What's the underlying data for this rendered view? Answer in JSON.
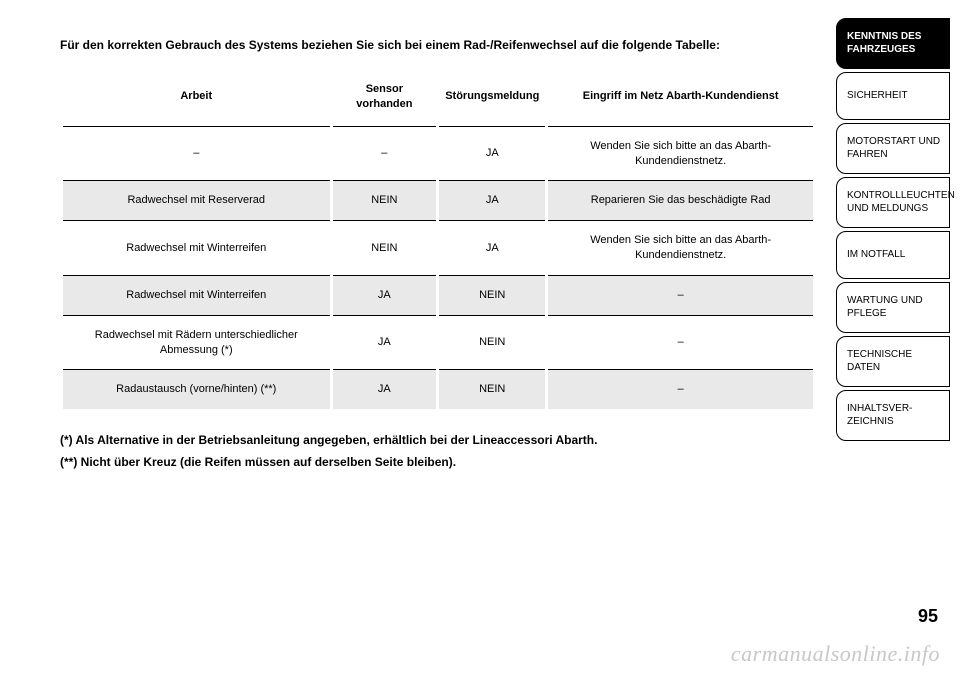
{
  "intro": "Für den korrekten Gebrauch des Systems beziehen Sie sich bei einem Rad-/Reifenwechsel auf die folgende Tabelle:",
  "table": {
    "headers": [
      "Arbeit",
      "Sensor vorhanden",
      "Störungsmeldung",
      "Eingriff im Netz\nAbarth-Kundendienst"
    ],
    "rows": [
      {
        "c0": "–",
        "c1": "–",
        "c2": "JA",
        "c3": "Wenden Sie sich bitte\nan das Abarth-\nKundendienstnetz."
      },
      {
        "c0": "Radwechsel\nmit Reserverad",
        "c1": "NEIN",
        "c2": "JA",
        "c3": "Reparieren Sie das\nbeschädigte Rad"
      },
      {
        "c0": "Radwechsel\nmit Winterreifen",
        "c1": "NEIN",
        "c2": "JA",
        "c3": "Wenden Sie sich bitte\nan das Abarth-\nKundendienstnetz."
      },
      {
        "c0": "Radwechsel\nmit Winterreifen",
        "c1": "JA",
        "c2": "NEIN",
        "c3": "–"
      },
      {
        "c0": "Radwechsel mit Rädern\nunterschiedlicher\nAbmessung (*)",
        "c1": "JA",
        "c2": "NEIN",
        "c3": "–"
      },
      {
        "c0": "Radaustausch\n(vorne/hinten) (**)",
        "c1": "JA",
        "c2": "NEIN",
        "c3": "–"
      }
    ]
  },
  "footnotes": {
    "f1": "(*) Als Alternative in der Betriebsanleitung angegeben, erhältlich bei der Lineaccessori Abarth.",
    "f2": "(**) Nicht über Kreuz (die Reifen müssen auf derselben Seite bleiben)."
  },
  "sidebar": {
    "t0": "KENNTNIS DES FAHRZEUGES",
    "t1": "SICHERHEIT",
    "t2": "MOTORSTART UND FAHREN",
    "t3": "KONTROLLLEUCHTEN UND MELDUNGS",
    "t4": "IM NOTFALL",
    "t5": "WARTUNG UND PFLEGE",
    "t6": "TECHNISCHE DATEN",
    "t7": "INHALTSVER-ZEICHNIS"
  },
  "pagenum": "95",
  "watermark": "carmanualsonline.info"
}
